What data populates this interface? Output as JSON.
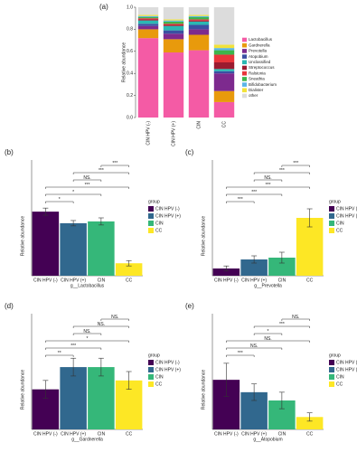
{
  "chart_data": [
    {
      "type": "stacked_bar",
      "panel": "(a)",
      "y_label": "Relative abundance",
      "categories": [
        "CIN HPV (-)",
        "CIN HPV (+)",
        "CIN",
        "CC"
      ],
      "ylim": [
        0,
        1
      ],
      "yticks": [
        {
          "value": 0,
          "label": "0.0"
        },
        0.2,
        0.4,
        0.6,
        0.8,
        {
          "value": 1,
          "label": "1.0"
        }
      ],
      "series": [
        {
          "name": "Lactobacillus",
          "color": "#F45BA5",
          "values": [
            0.72,
            0.59,
            0.61,
            0.14
          ]
        },
        {
          "name": "Gardnerella",
          "color": "#E89A0C",
          "values": [
            0.08,
            0.12,
            0.14,
            0.1
          ]
        },
        {
          "name": "Prevotella",
          "color": "#7D2A8E",
          "values": [
            0.03,
            0.05,
            0.05,
            0.16
          ]
        },
        {
          "name": "Atopobium",
          "color": "#3B4FA2",
          "values": [
            0.02,
            0.03,
            0.04,
            0.02
          ]
        },
        {
          "name": "Unclassified",
          "color": "#2BB8B2",
          "values": [
            0.03,
            0.04,
            0.03,
            0.02
          ]
        },
        {
          "name": "Streptococcus",
          "color": "#9B1B30",
          "values": [
            0.01,
            0.01,
            0.01,
            0.06
          ]
        },
        {
          "name": "Ralstonia",
          "color": "#E8353B",
          "values": [
            0.01,
            0.01,
            0.01,
            0.07
          ]
        },
        {
          "name": "Sneathia",
          "color": "#3DB54B",
          "values": [
            0.01,
            0.02,
            0.02,
            0.04
          ]
        },
        {
          "name": "Bifidobacterium",
          "color": "#5BB5E6",
          "values": [
            0.01,
            0.01,
            0.01,
            0.02
          ]
        },
        {
          "name": "Dialister",
          "color": "#F2E23A",
          "values": [
            0.01,
            0.01,
            0.01,
            0.03
          ]
        },
        {
          "name": "other",
          "color": "#DCDCDC",
          "values": [
            0.07,
            0.11,
            0.07,
            0.34
          ]
        }
      ]
    },
    {
      "type": "bar",
      "panel": "(b)",
      "x_label": "g__Lactobacillus",
      "y_label": "Relative abundance",
      "legend_title": "group",
      "categories": [
        "CIN HPV (-)",
        "CIN HPV (+)",
        "CIN",
        "CC"
      ],
      "colors": [
        "#440154",
        "#31688E",
        "#35B779",
        "#FDE725"
      ],
      "values": [
        0.72,
        0.59,
        0.61,
        0.14
      ],
      "errors": [
        0.04,
        0.03,
        0.04,
        0.03
      ],
      "ylim": [
        0,
        1.3
      ],
      "comparisons": [
        {
          "from": "CIN HPV (-)",
          "to": "CIN HPV (+)",
          "label": "*"
        },
        {
          "from": "CIN HPV (-)",
          "to": "CIN",
          "label": "*"
        },
        {
          "from": "CIN HPV (-)",
          "to": "CC",
          "label": "***"
        },
        {
          "from": "CIN HPV (+)",
          "to": "CIN",
          "label": "NS."
        },
        {
          "from": "CIN HPV (+)",
          "to": "CC",
          "label": "***"
        },
        {
          "from": "CIN",
          "to": "CC",
          "label": "***"
        }
      ]
    },
    {
      "type": "bar",
      "panel": "(c)",
      "x_label": "g__Prevotella",
      "y_label": "Relative abundance",
      "legend_title": "group",
      "categories": [
        "CIN HPV (-)",
        "CIN HPV (+)",
        "CIN",
        "CC"
      ],
      "colors": [
        "#440154",
        "#31688E",
        "#35B779",
        "#FDE725"
      ],
      "values": [
        0.02,
        0.045,
        0.05,
        0.16
      ],
      "errors": [
        0.007,
        0.01,
        0.015,
        0.025
      ],
      "ylim": [
        0,
        0.32
      ],
      "comparisons": [
        {
          "from": "CIN HPV (-)",
          "to": "CIN HPV (+)",
          "label": "***"
        },
        {
          "from": "CIN HPV (-)",
          "to": "CIN",
          "label": "***"
        },
        {
          "from": "CIN HPV (-)",
          "to": "CC",
          "label": "***"
        },
        {
          "from": "CIN HPV (+)",
          "to": "CIN",
          "label": "NS."
        },
        {
          "from": "CIN HPV (+)",
          "to": "CC",
          "label": "***"
        },
        {
          "from": "CIN",
          "to": "CC",
          "label": "***"
        }
      ]
    },
    {
      "type": "bar",
      "panel": "(d)",
      "x_label": "g__Gardnerella",
      "y_label": "Relative abundance",
      "legend_title": "group",
      "categories": [
        "CIN HPV (-)",
        "CIN HPV (+)",
        "CIN",
        "CC"
      ],
      "colors": [
        "#440154",
        "#31688E",
        "#35B779",
        "#FDE725"
      ],
      "values": [
        0.09,
        0.14,
        0.14,
        0.11
      ],
      "errors": [
        0.02,
        0.02,
        0.02,
        0.02
      ],
      "ylim": [
        0,
        0.26
      ],
      "comparisons": [
        {
          "from": "CIN HPV (-)",
          "to": "CIN HPV (+)",
          "label": "**"
        },
        {
          "from": "CIN HPV (-)",
          "to": "CIN",
          "label": "***"
        },
        {
          "from": "CIN HPV (-)",
          "to": "CC",
          "label": "*"
        },
        {
          "from": "CIN HPV (+)",
          "to": "CIN",
          "label": "NS."
        },
        {
          "from": "CIN HPV (+)",
          "to": "CC",
          "label": "NS."
        },
        {
          "from": "CIN",
          "to": "CC",
          "label": "NS."
        }
      ]
    },
    {
      "type": "bar",
      "panel": "(e)",
      "x_label": "g__Atopobium",
      "y_label": "Relative abundance",
      "legend_title": "group",
      "categories": [
        "CIN HPV (-)",
        "CIN HPV (+)",
        "CIN",
        "CC"
      ],
      "colors": [
        "#440154",
        "#31688E",
        "#35B779",
        "#FDE725"
      ],
      "values": [
        0.06,
        0.045,
        0.035,
        0.015
      ],
      "errors": [
        0.02,
        0.01,
        0.01,
        0.005
      ],
      "ylim": [
        0,
        0.14
      ],
      "comparisons": [
        {
          "from": "CIN HPV (-)",
          "to": "CIN HPV (+)",
          "label": "***"
        },
        {
          "from": "CIN HPV (-)",
          "to": "CIN",
          "label": "NS."
        },
        {
          "from": "CIN HPV (-)",
          "to": "CC",
          "label": "NS."
        },
        {
          "from": "CIN HPV (+)",
          "to": "CIN",
          "label": "*"
        },
        {
          "from": "CIN HPV (+)",
          "to": "CC",
          "label": "***"
        },
        {
          "from": "CIN",
          "to": "CC",
          "label": "NS."
        }
      ]
    }
  ]
}
